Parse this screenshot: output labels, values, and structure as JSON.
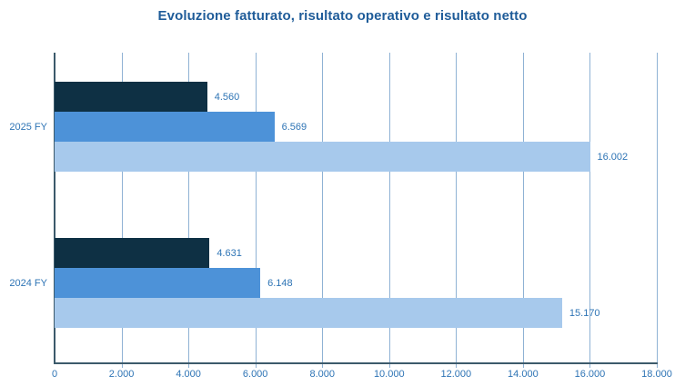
{
  "chart_data": {
    "type": "bar",
    "orientation": "horizontal",
    "title": "Evoluzione fatturato, risultato operativo e risultato netto",
    "categories": [
      "2025 FY",
      "2024 FY"
    ],
    "series": [
      {
        "name": "risultato netto",
        "color": "#0E3044",
        "values": [
          4560,
          4631
        ],
        "labels": [
          "4.560",
          "4.631"
        ]
      },
      {
        "name": "risultato operativo",
        "color": "#4D92D8",
        "values": [
          6569,
          6148
        ],
        "labels": [
          "6.569",
          "6.148"
        ]
      },
      {
        "name": "fatturato",
        "color": "#A7C9EC",
        "values": [
          16002,
          15170
        ],
        "labels": [
          "16.002",
          "15.170"
        ]
      }
    ],
    "xlim": [
      0,
      18000
    ],
    "xticks": [
      0,
      2000,
      4000,
      6000,
      8000,
      10000,
      12000,
      14000,
      16000,
      18000
    ],
    "xtick_labels": [
      "0",
      "2.000",
      "4.000",
      "6.000",
      "8.000",
      "10.000",
      "12.000",
      "14.000",
      "16.000",
      "18.000"
    ],
    "grid": "vertical",
    "legend": "none",
    "colors": {
      "axis": "#3C5A6B",
      "gridline": "#8FB2D4",
      "label_text": "#2E74B5",
      "title_text": "#1F5C99",
      "background": "#FFFFFF"
    }
  }
}
